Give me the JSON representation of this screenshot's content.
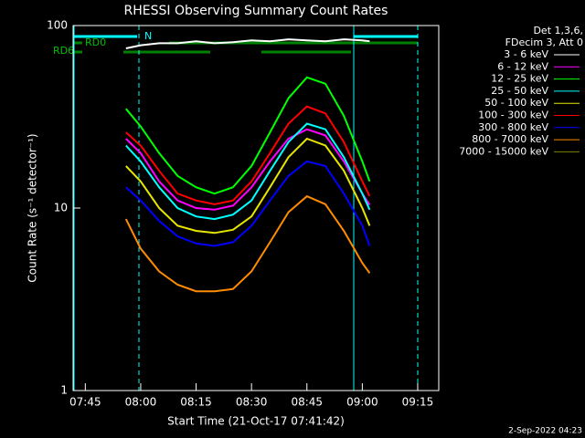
{
  "chart_data": {
    "type": "line",
    "title": "RHESSI Observing Summary Count Rates",
    "x_label": "Start Time (21-Oct-17 07:41:42)",
    "y_label": "Count Rate (s⁻¹ detector⁻¹)",
    "log_y": true,
    "ylim": [
      1,
      100
    ],
    "yticks": [
      1,
      10,
      100
    ],
    "xlim": [
      461.7,
      560.7
    ],
    "xticks": [
      {
        "value": 465,
        "label": "07:45"
      },
      {
        "value": 480,
        "label": "08:00"
      },
      {
        "value": 495,
        "label": "08:15"
      },
      {
        "value": 510,
        "label": "08:30"
      },
      {
        "value": 525,
        "label": "08:45"
      },
      {
        "value": 540,
        "label": "09:00"
      },
      {
        "value": 555,
        "label": "09:15"
      }
    ],
    "x": [
      476,
      480,
      485,
      490,
      495,
      500,
      505,
      510,
      515,
      520,
      525,
      530,
      535,
      540,
      542
    ],
    "legend_title": [
      "Det 1,3,6,",
      "FDecim 3, Att 0"
    ],
    "series": [
      {
        "name": "3 - 6 keV",
        "color": "#ffffff",
        "values": [
          75,
          78,
          80,
          80,
          82,
          80,
          81,
          83,
          82,
          84,
          83,
          82,
          84,
          83,
          82
        ]
      },
      {
        "name": "6 - 12 keV",
        "color": "#ff00ff",
        "values": [
          24,
          20,
          14,
          11,
          10,
          9.8,
          10.3,
          13,
          18,
          24,
          27,
          25,
          18,
          12,
          10.4
        ]
      },
      {
        "name": "12 - 25 keV",
        "color": "#00ff00",
        "values": [
          35,
          28,
          20,
          15,
          13,
          12,
          13,
          17,
          26,
          40,
          52,
          48,
          32,
          18,
          14
        ]
      },
      {
        "name": "25 - 50 keV",
        "color": "#00ffff",
        "values": [
          22,
          18,
          13,
          10,
          9,
          8.7,
          9.2,
          11,
          16,
          23,
          29,
          27,
          19,
          12,
          9.8
        ]
      },
      {
        "name": "50 - 100 keV",
        "color": "#e6e600",
        "values": [
          17,
          14,
          10,
          8,
          7.5,
          7.3,
          7.6,
          9,
          13,
          19,
          24,
          22,
          16,
          10,
          8
        ]
      },
      {
        "name": "100 - 300 keV",
        "color": "#ff0000",
        "values": [
          26,
          22,
          16,
          12,
          11,
          10.5,
          11,
          14,
          20,
          29,
          36,
          33,
          23,
          14,
          11.6
        ]
      },
      {
        "name": "300 - 800 keV",
        "color": "#0000ff",
        "values": [
          13,
          11,
          8.5,
          7,
          6.4,
          6.2,
          6.5,
          8,
          11,
          15,
          18,
          17,
          12,
          8,
          6.2
        ]
      },
      {
        "name": "800 - 7000 keV",
        "color": "#ff8c00",
        "values": [
          8.7,
          6,
          4.5,
          3.8,
          3.5,
          3.5,
          3.6,
          4.5,
          6.5,
          9.5,
          11.6,
          10.5,
          7.5,
          5,
          4.4
        ]
      },
      {
        "name": "7000 - 15000 keV",
        "color": "#808000",
        "values": [
          null,
          null,
          null,
          null,
          null,
          null,
          null,
          null,
          null,
          null,
          null,
          null,
          null,
          null,
          null
        ]
      }
    ],
    "flags": [
      "RD0",
      "RD6",
      "N"
    ],
    "timestamp": "2-Sep-2022 04:23"
  }
}
